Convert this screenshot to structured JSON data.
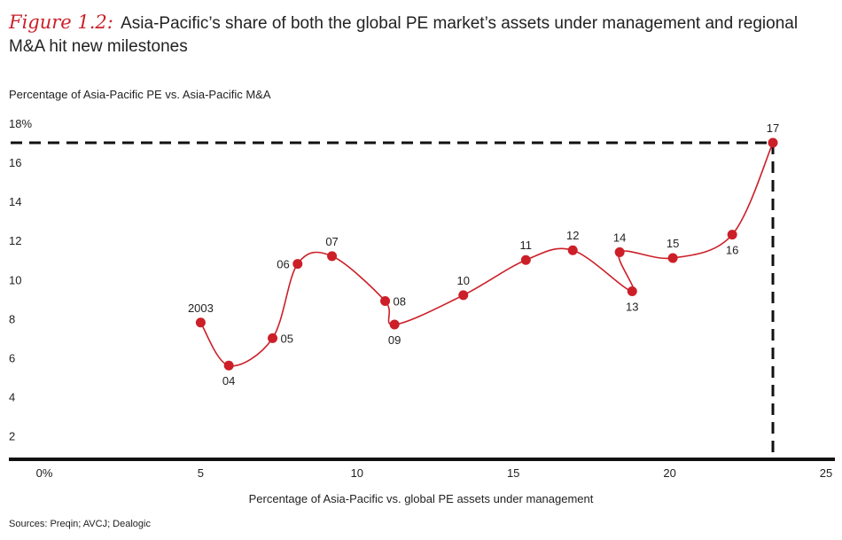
{
  "title": {
    "figure_label": "Figure 1.2:",
    "text": "Asia-Pacific’s share of both the global PE market’s assets under management and regional M&A hit new milestones"
  },
  "source": "Sources: Preqin; AVCJ; Dealogic",
  "colors": {
    "accent": "#cc1f28",
    "axis": "#111111",
    "text": "#222222"
  },
  "chart_data": {
    "type": "scatter",
    "connected": true,
    "ylabel": "Percentage of Asia-Pacific PE vs. Asia-Pacific M&A",
    "xlabel": "Percentage of Asia-Pacific vs. global PE assets under management",
    "xlim": [
      0,
      25
    ],
    "ylim": [
      0.8,
      18
    ],
    "x_ticks": [
      {
        "value": 0,
        "label": "0%"
      },
      {
        "value": 5,
        "label": "5"
      },
      {
        "value": 10,
        "label": "10"
      },
      {
        "value": 15,
        "label": "15"
      },
      {
        "value": 20,
        "label": "20"
      },
      {
        "value": 25,
        "label": "25"
      }
    ],
    "y_ticks": [
      {
        "value": 2,
        "label": "2"
      },
      {
        "value": 4,
        "label": "4"
      },
      {
        "value": 6,
        "label": "6"
      },
      {
        "value": 8,
        "label": "8"
      },
      {
        "value": 10,
        "label": "10"
      },
      {
        "value": 12,
        "label": "12"
      },
      {
        "value": 14,
        "label": "14"
      },
      {
        "value": 16,
        "label": "16"
      },
      {
        "value": 18,
        "label": "18%"
      }
    ],
    "points": [
      {
        "label": "2003",
        "x": 5.0,
        "y": 7.8,
        "label_pos": "above"
      },
      {
        "label": "04",
        "x": 5.9,
        "y": 5.6,
        "label_pos": "below"
      },
      {
        "label": "05",
        "x": 7.3,
        "y": 7.0,
        "label_pos": "right"
      },
      {
        "label": "06",
        "x": 8.1,
        "y": 10.8,
        "label_pos": "left"
      },
      {
        "label": "07",
        "x": 9.2,
        "y": 11.2,
        "label_pos": "above"
      },
      {
        "label": "08",
        "x": 10.9,
        "y": 8.9,
        "label_pos": "right"
      },
      {
        "label": "09",
        "x": 11.2,
        "y": 7.7,
        "label_pos": "below"
      },
      {
        "label": "10",
        "x": 13.4,
        "y": 9.2,
        "label_pos": "above"
      },
      {
        "label": "11",
        "x": 15.4,
        "y": 11.0,
        "label_pos": "above"
      },
      {
        "label": "12",
        "x": 16.9,
        "y": 11.5,
        "label_pos": "above"
      },
      {
        "label": "13",
        "x": 18.8,
        "y": 9.4,
        "label_pos": "below"
      },
      {
        "label": "14",
        "x": 18.4,
        "y": 11.4,
        "label_pos": "above"
      },
      {
        "label": "15",
        "x": 20.1,
        "y": 11.1,
        "label_pos": "above"
      },
      {
        "label": "16",
        "x": 22.0,
        "y": 12.3,
        "label_pos": "below"
      },
      {
        "label": "17",
        "x": 23.3,
        "y": 17.0,
        "label_pos": "above"
      }
    ],
    "reference_lines": {
      "x": 23.3,
      "y": 17.0,
      "style": "dashed"
    },
    "grid": false,
    "legend": "none"
  }
}
